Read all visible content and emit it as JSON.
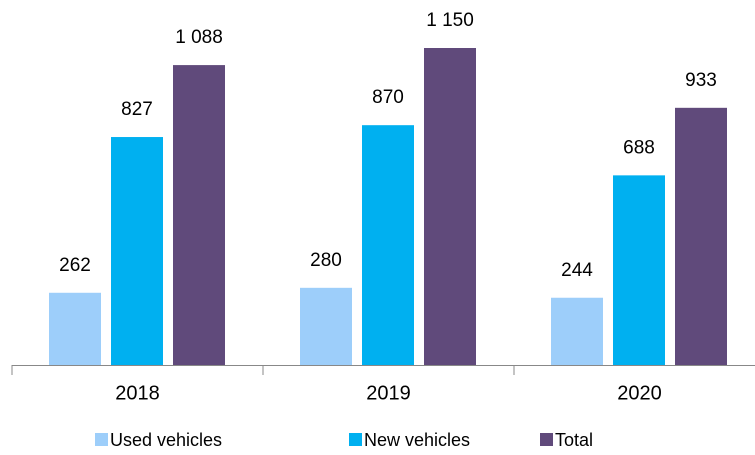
{
  "chart_data": {
    "type": "bar",
    "categories": [
      "2018",
      "2019",
      "2020"
    ],
    "series": [
      {
        "name": "Used vehicles",
        "color": "#9dcefa",
        "values": [
          262,
          280,
          244
        ]
      },
      {
        "name": "New vehicles",
        "color": "#00b0f0",
        "values": [
          827,
          870,
          688
        ]
      },
      {
        "name": "Total",
        "color": "#604a7b",
        "values": [
          1088,
          1150,
          933
        ],
        "value_labels": [
          "1 088",
          "1 150",
          "933"
        ]
      }
    ],
    "legend": "bottom"
  }
}
